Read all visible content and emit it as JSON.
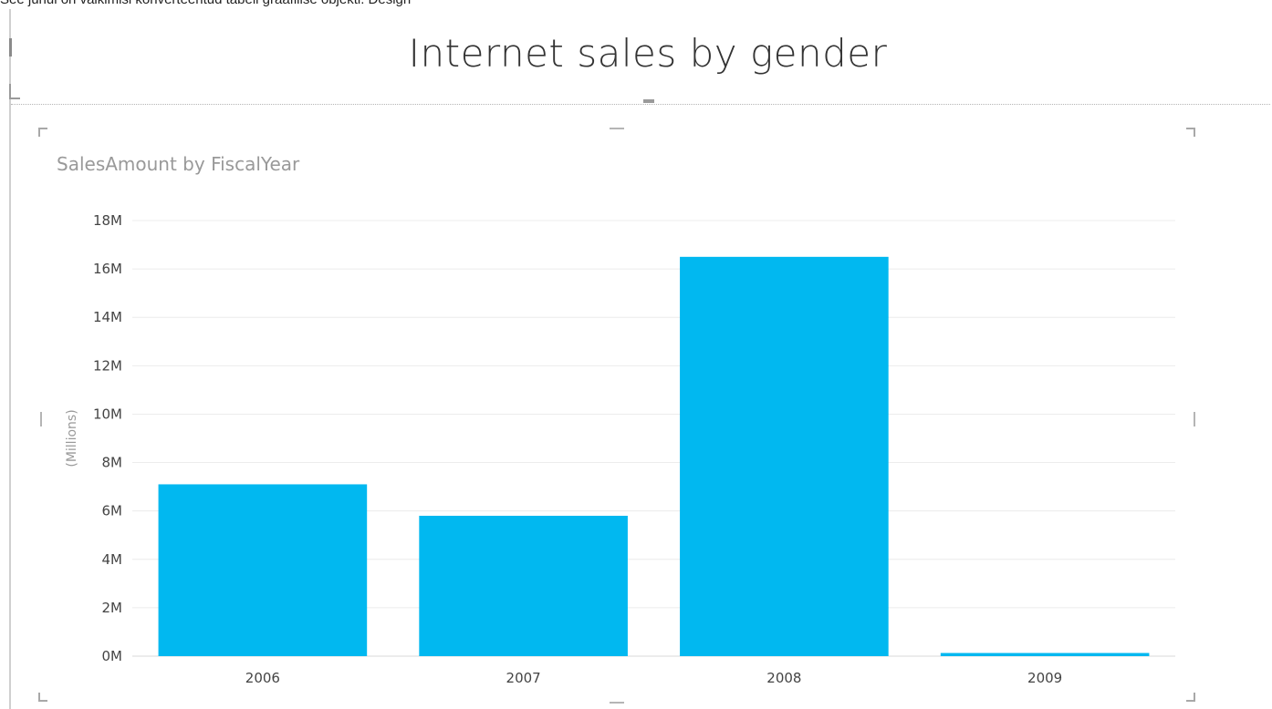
{
  "caption": "See juhul on vaikimisi konverteeritud tabeli graafilise objekti. Design",
  "report_title": "Internet sales by gender",
  "chart_data": {
    "type": "bar",
    "title": "SalesAmount by FiscalYear",
    "ylabel": "(Millions)",
    "categories": [
      "2006",
      "2007",
      "2008",
      "2009"
    ],
    "values": [
      7.1,
      5.8,
      16.5,
      0.13
    ],
    "ylim": [
      0,
      18
    ],
    "yticks": [
      0,
      2,
      4,
      6,
      8,
      10,
      12,
      14,
      16,
      18
    ],
    "ytick_labels": [
      "0M",
      "2M",
      "4M",
      "6M",
      "8M",
      "10M",
      "12M",
      "14M",
      "16M",
      "18M"
    ],
    "grid": true,
    "bar_color": "#01B8F0"
  }
}
